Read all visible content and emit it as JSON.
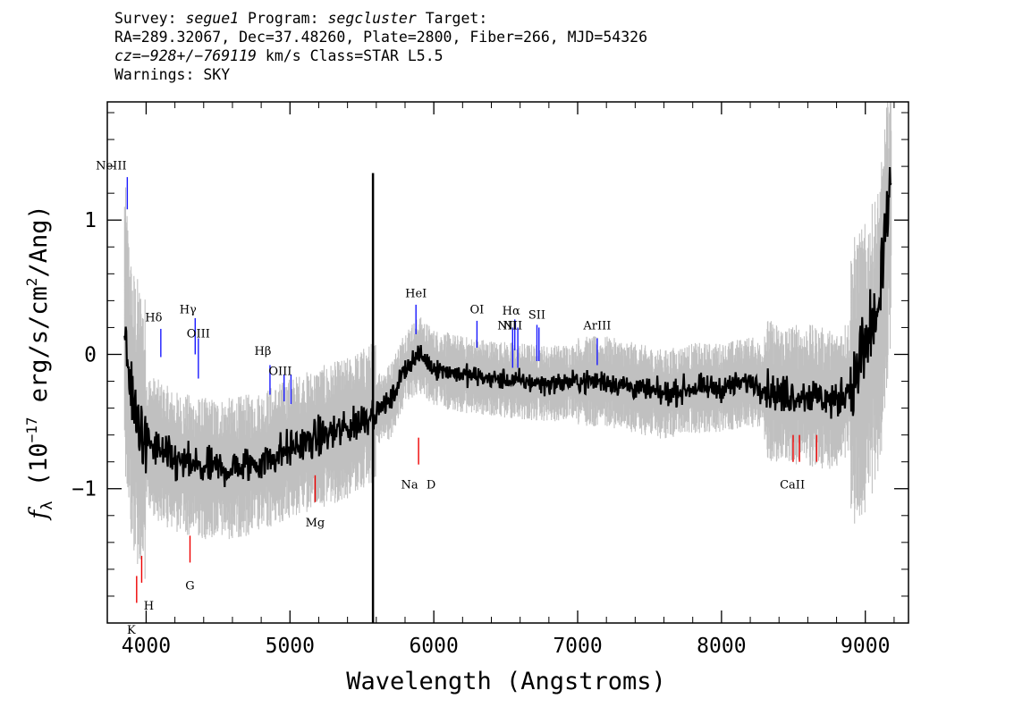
{
  "header": {
    "survey_label": "Survey:",
    "survey": "segue1",
    "program_label": "Program:",
    "program": "segcluster",
    "target_label": "Target:",
    "coords": "RA=289.32067, Dec=37.48260, Plate=2800, Fiber=266, MJD=54326",
    "cz": "cz=−928+/−769119",
    "cz_unit": "km/s",
    "class_text": "Class=STAR L5.5",
    "warnings": "Warnings: SKY"
  },
  "chart_data": {
    "type": "line",
    "xlabel": "Wavelength (Angstroms)",
    "ylabel_prefix": "f",
    "ylabel_sub": "λ",
    "ylabel_main": "(10",
    "ylabel_exp": "−17",
    "ylabel_units": "erg/s/cm",
    "ylabel_sq": "2",
    "ylabel_tail": "/Ang)",
    "xlim": [
      3730,
      9300
    ],
    "ylim": [
      -2.0,
      1.88
    ],
    "x_ticks": [
      4000,
      5000,
      6000,
      7000,
      8000,
      9000
    ],
    "x_tick_labels": [
      "4000",
      "5000",
      "6000",
      "7000",
      "8000",
      "9000"
    ],
    "y_ticks": [
      -1,
      0,
      1
    ],
    "y_tick_labels": [
      "−1",
      "0",
      "1"
    ],
    "grid": false,
    "legend": "none",
    "colors": {
      "flux": "#000000",
      "error": "#c0c0c0",
      "emission": "#1a1aff",
      "absorption": "#ee0000"
    },
    "smoothed_flux_anchors": {
      "x": [
        3840,
        3900,
        4000,
        4200,
        4400,
        4600,
        4800,
        5000,
        5200,
        5400,
        5550,
        5700,
        5800,
        5900,
        6000,
        6200,
        6400,
        6600,
        6800,
        7000,
        7200,
        7400,
        7600,
        7800,
        8000,
        8200,
        8400,
        8600,
        8800,
        9000,
        9100,
        9180
      ],
      "y": [
        0.4,
        -0.4,
        -0.65,
        -0.8,
        -0.85,
        -0.85,
        -0.8,
        -0.7,
        -0.62,
        -0.55,
        -0.45,
        -0.35,
        -0.1,
        0.0,
        -0.1,
        -0.15,
        -0.18,
        -0.2,
        -0.22,
        -0.2,
        -0.2,
        -0.25,
        -0.3,
        -0.25,
        -0.25,
        -0.2,
        -0.3,
        -0.3,
        -0.35,
        -0.1,
        0.2,
        1.2
      ]
    },
    "emission_lines": [
      {
        "label": "NeIII",
        "x": 3869
      },
      {
        "label": "Hδ",
        "x": 4102
      },
      {
        "label": "Hγ",
        "x": 4341
      },
      {
        "label": "OIII",
        "x": 4363
      },
      {
        "label": "Hβ",
        "x": 4861
      },
      {
        "label": "OIII",
        "x": 4959
      },
      {
        "label": "OIII",
        "x": 5007
      },
      {
        "label": "HeI",
        "x": 5876
      },
      {
        "label": "OI",
        "x": 6300
      },
      {
        "label": "NII",
        "x": 6548
      },
      {
        "label": "Hα",
        "x": 6563
      },
      {
        "label": "NII",
        "x": 6584
      },
      {
        "label": "SII",
        "x": 6717
      },
      {
        "label": "SII",
        "x": 6731
      },
      {
        "label": "ArIII",
        "x": 7136
      }
    ],
    "absorption_lines": [
      {
        "label": "K",
        "x": 3934
      },
      {
        "label": "H",
        "x": 3969
      },
      {
        "label": "G",
        "x": 4305
      },
      {
        "label": "Mg",
        "x": 5175
      },
      {
        "label": "Na",
        "x": 5894
      },
      {
        "label": "D",
        "x": 5894
      },
      {
        "label": "CaII",
        "x": 8498
      },
      {
        "label": "CaII",
        "x": 8542
      },
      {
        "label": "CaII",
        "x": 8662
      }
    ]
  }
}
